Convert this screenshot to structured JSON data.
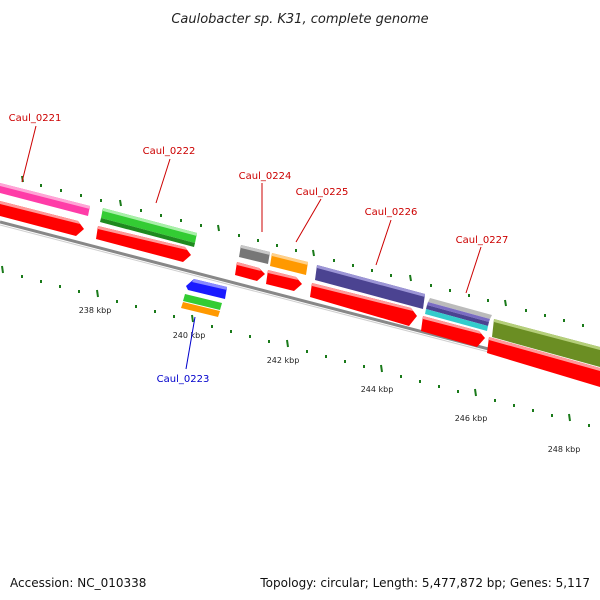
{
  "title": "Caulobacter sp. K31, complete genome",
  "footer": {
    "accession": "Accession: NC_010338",
    "summary": "Topology: circular; Length: 5,477,872 bp; Genes: 5,117"
  },
  "scale_labels": [
    "238 kbp",
    "240 kbp",
    "242 kbp",
    "244 kbp",
    "246 kbp",
    "248 kbp"
  ],
  "gene_labels": [
    {
      "text": "Caul_0221",
      "color": "#cc0000"
    },
    {
      "text": "Caul_0222",
      "color": "#cc0000"
    },
    {
      "text": "Caul_0223",
      "color": "#0000cc"
    },
    {
      "text": "Caul_0224",
      "color": "#cc0000"
    },
    {
      "text": "Caul_0225",
      "color": "#cc0000"
    },
    {
      "text": "Caul_0226",
      "color": "#cc0000"
    },
    {
      "text": "Caul_0227",
      "color": "#cc0000"
    }
  ],
  "colors": {
    "cds_arrow": "#ff0000",
    "backbone": "#999999",
    "tick": "#1a7a1a",
    "feature_pink": "#ff3ca8",
    "feature_green": "#33cc33",
    "feature_gray": "#777777",
    "feature_orange": "#ff9900",
    "feature_purple": "#4b4391",
    "feature_blue": "#1a1aff",
    "feature_teal": "#33cccc",
    "feature_olive": "#6b8e23"
  }
}
